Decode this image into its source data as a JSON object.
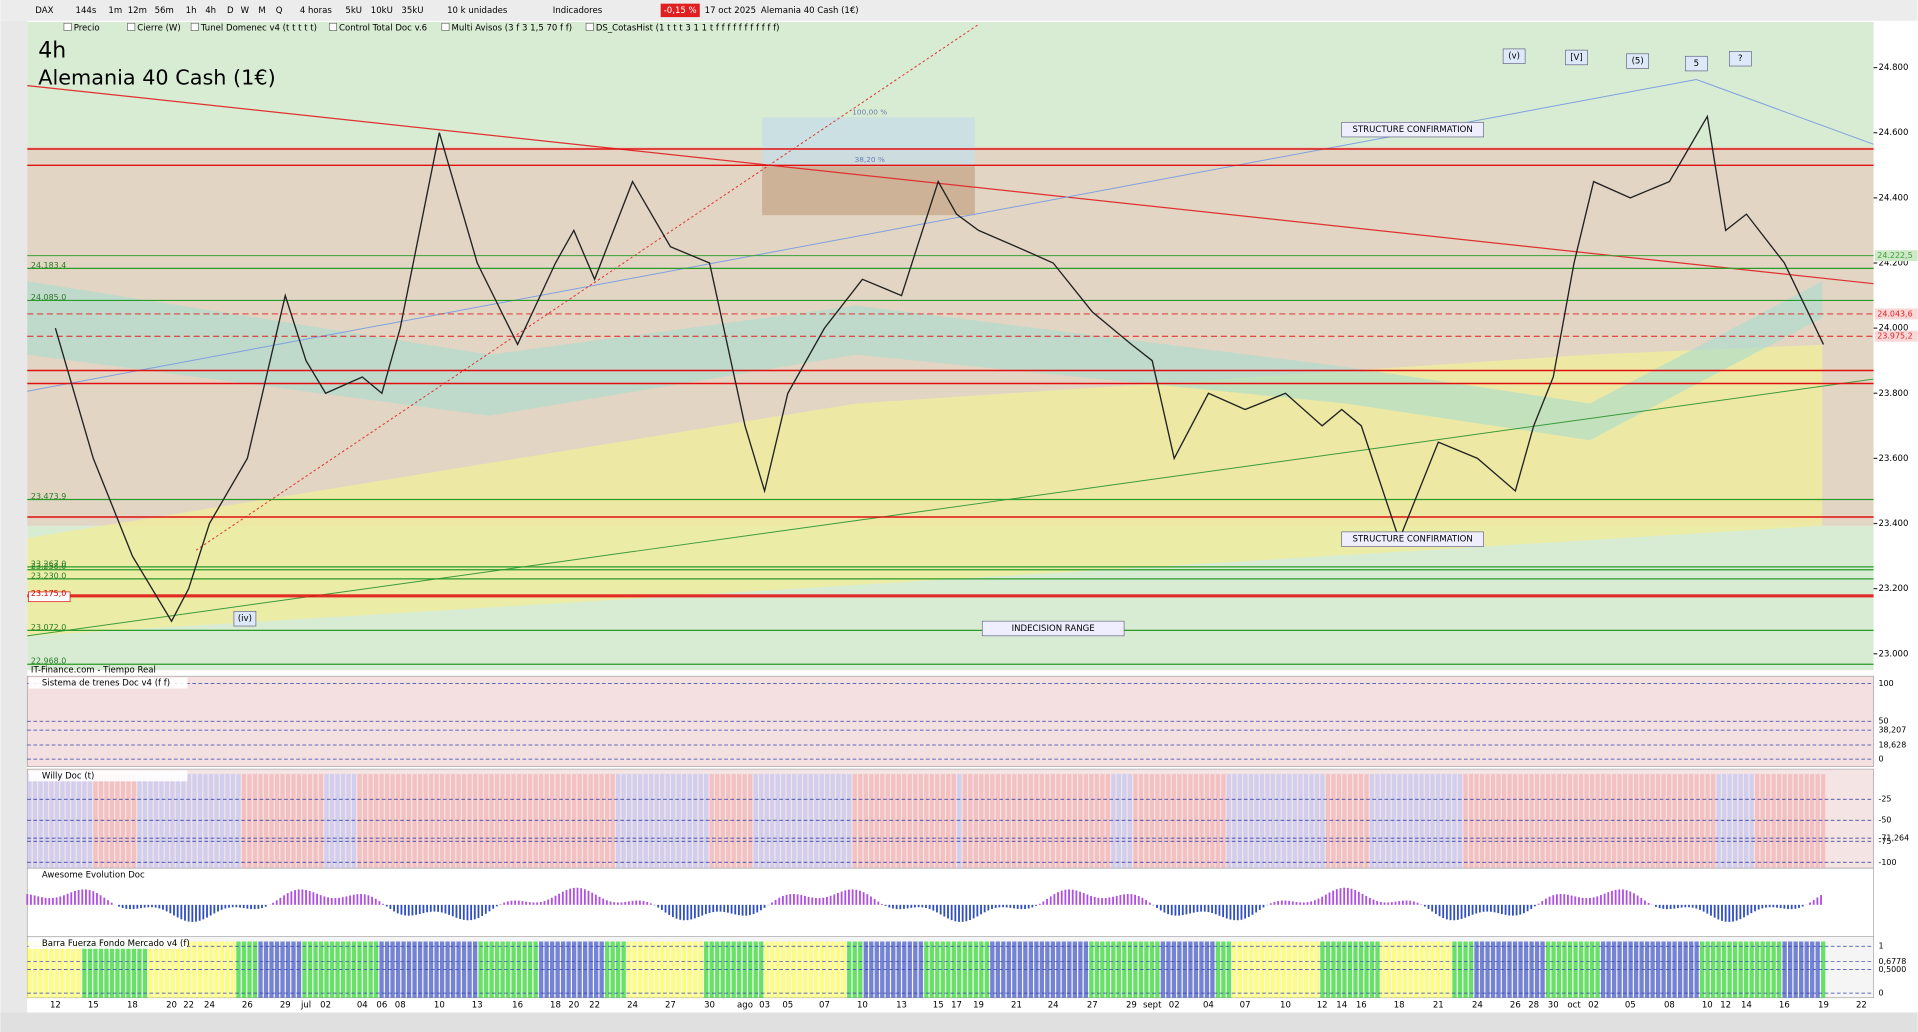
{
  "toolbar": {
    "items": [
      "DAX",
      "144s",
      "1m",
      "12m",
      "56m",
      "1h",
      "4h",
      "D",
      "W",
      "M",
      "Q",
      "4 horas",
      "5kU",
      "10kU",
      "35kU",
      "10 k unidades",
      "Indicadores"
    ],
    "change": "-0,15 %",
    "date": "17 oct 2025",
    "instrument": "Alemania 40 Cash (1€)"
  },
  "legend_bar": [
    "Precio",
    "Cierre (W)",
    "Tunel Domenec v4 (t t t t t)",
    "Control Total Doc v.6",
    "Multi Avisos (3 f 3 1,5 70 f f)",
    "DS_CotasHist (1 t t t 3 1 1 t f f f f f f f f f f f)"
  ],
  "main": {
    "timeframe": "4h",
    "title": "Alemania 40 Cash (1€)",
    "source": "IT-Finance.com - Tiempo Real",
    "ylim": [
      22950,
      24940
    ],
    "yticks": [
      {
        "value": 24800,
        "label": "24.800"
      },
      {
        "value": 24600,
        "label": "24.600"
      },
      {
        "value": 24400,
        "label": "24.400"
      },
      {
        "value": 24200,
        "label": "24.200"
      },
      {
        "value": 24000,
        "label": "24.000"
      },
      {
        "value": 23800,
        "label": "23.800"
      },
      {
        "value": 23600,
        "label": "23.600"
      },
      {
        "value": 23400,
        "label": "23.400"
      },
      {
        "value": 23200,
        "label": "23.200"
      },
      {
        "value": 23000,
        "label": "23.000"
      }
    ],
    "left_levels": [
      {
        "value": 24183.4,
        "label": "24.183,4"
      },
      {
        "value": 24085,
        "label": "24.085,0"
      },
      {
        "value": 23473.9,
        "label": "23.473,9"
      },
      {
        "value": 23267,
        "label": "23.267,0"
      },
      {
        "value": 23258,
        "label": "23.258,0"
      },
      {
        "value": 23230,
        "label": "23.230,0"
      },
      {
        "value": 23175,
        "label": "23.175,0"
      },
      {
        "value": 23072,
        "label": "23.072,0"
      },
      {
        "value": 22968,
        "label": "22.968,0"
      }
    ],
    "right_levels": [
      {
        "value": 24222.5,
        "label": "24.222,5"
      },
      {
        "value": 24043.6,
        "label": "24.043,6"
      },
      {
        "value": 23975.2,
        "label": "23.975,2"
      }
    ],
    "red_lines": [
      24550,
      24500,
      23870,
      23830,
      23420,
      23180
    ],
    "annotations": [
      "STRUCTURE CONFIRMATION",
      "STRUCTURE CONFIRMATION",
      "INDECISION RANGE",
      "(iv)",
      "(v)",
      "[V]",
      "(5)",
      "5",
      "?",
      "100,00 %",
      "38,20 %"
    ],
    "dates": [
      "12",
      "15",
      "18",
      "20",
      "22",
      "24",
      "26",
      "29",
      "jul",
      "02",
      "04",
      "06",
      "08",
      "10",
      "13",
      "16",
      "18",
      "20",
      "22",
      "24",
      "27",
      "30",
      "ago",
      "03",
      "05",
      "07",
      "10",
      "13",
      "15",
      "17",
      "19",
      "21",
      "24",
      "27",
      "29",
      "sept",
      "02",
      "04",
      "07",
      "10",
      "12",
      "14",
      "16",
      "18",
      "21",
      "24",
      "26",
      "28",
      "30",
      "oct",
      "02",
      "05",
      "08",
      "10",
      "12",
      "14",
      "16",
      "19",
      "22"
    ],
    "price": [
      24000,
      23600,
      23300,
      23100,
      23200,
      23400,
      23600,
      24100,
      23900,
      23800,
      23850,
      23800,
      24000,
      24600,
      24200,
      23950,
      24200,
      24300,
      24150,
      24450,
      24250,
      24200,
      23700,
      23500,
      23800,
      24000,
      24150,
      24100,
      24450,
      24350,
      24300,
      24250,
      24200,
      24050,
      23950,
      23900,
      23600,
      23800,
      23750,
      23800,
      23700,
      23750,
      23700,
      23350,
      23650,
      23600,
      23500,
      23700,
      23850,
      24200,
      24450,
      24400,
      24450,
      24650,
      24300,
      24350,
      24200,
      23950,
      null
    ]
  },
  "panels": [
    {
      "title": "Sistema de trenes Doc v4 (f f)",
      "ylim": [
        -10,
        103
      ],
      "yticks": [
        100,
        50,
        {
          "value": 38.207,
          "label": "38,207"
        },
        {
          "value": 18.628,
          "label": "18,628"
        },
        0
      ]
    },
    {
      "title": "Willy Doc (t)",
      "ylim": [
        -107,
        5
      ],
      "yticks": [
        -25,
        -50,
        {
          "value": -71.264,
          "label": "-71,264"
        },
        -75,
        -100
      ]
    },
    {
      "title": "Awesome Evolution Doc",
      "ylim": [
        -1,
        1
      ],
      "yticks": []
    },
    {
      "title": "Barra Fuerza Fondo Mercado v4 (f)",
      "ylim": [
        -0.1,
        1.1
      ],
      "yticks": [
        1,
        {
          "value": 0.6778,
          "label": "0,6778"
        },
        {
          "value": 0.5,
          "label": "0,5000"
        },
        0
      ]
    }
  ]
}
